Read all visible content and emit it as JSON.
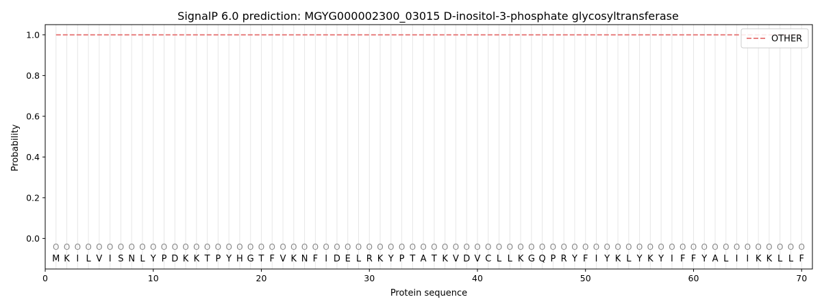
{
  "chart_data": {
    "type": "line",
    "title": "SignalP 6.0 prediction: MGYG000002300_03015 D-inositol-3-phosphate glycosyltransferase",
    "xlabel": "Protein sequence",
    "ylabel": "Probability",
    "xlim": [
      0,
      71
    ],
    "ylim": [
      -0.15,
      1.05
    ],
    "x_ticks": [
      0,
      10,
      20,
      30,
      40,
      50,
      60,
      70
    ],
    "y_ticks": [
      0.0,
      0.2,
      0.4,
      0.6,
      0.8,
      1.0
    ],
    "y_tick_labels": [
      "0.0",
      "0.2",
      "0.4",
      "0.6",
      "0.8",
      "1.0"
    ],
    "sequence": [
      "M",
      "K",
      "I",
      "L",
      "V",
      "I",
      "S",
      "N",
      "L",
      "Y",
      "P",
      "D",
      "K",
      "K",
      "T",
      "P",
      "Y",
      "H",
      "G",
      "T",
      "F",
      "V",
      "K",
      "N",
      "F",
      "I",
      "D",
      "E",
      "L",
      "R",
      "K",
      "Y",
      "P",
      "T",
      "A",
      "T",
      "K",
      "V",
      "D",
      "V",
      "C",
      "L",
      "L",
      "K",
      "G",
      "Q",
      "P",
      "R",
      "Y",
      "F",
      "I",
      "Y",
      "K",
      "L",
      "Y",
      "K",
      "Y",
      "I",
      "F",
      "F",
      "Y",
      "A",
      "L",
      "I",
      "I",
      "K",
      "K",
      "L",
      "L",
      "F"
    ],
    "region_label": "O",
    "series": [
      {
        "name": "OTHER",
        "color": "#e88080",
        "style": "dashed",
        "x_start": 1,
        "x_end": 70,
        "value": 1.0
      }
    ],
    "legend_position": "top-right",
    "grid": "vertical"
  }
}
